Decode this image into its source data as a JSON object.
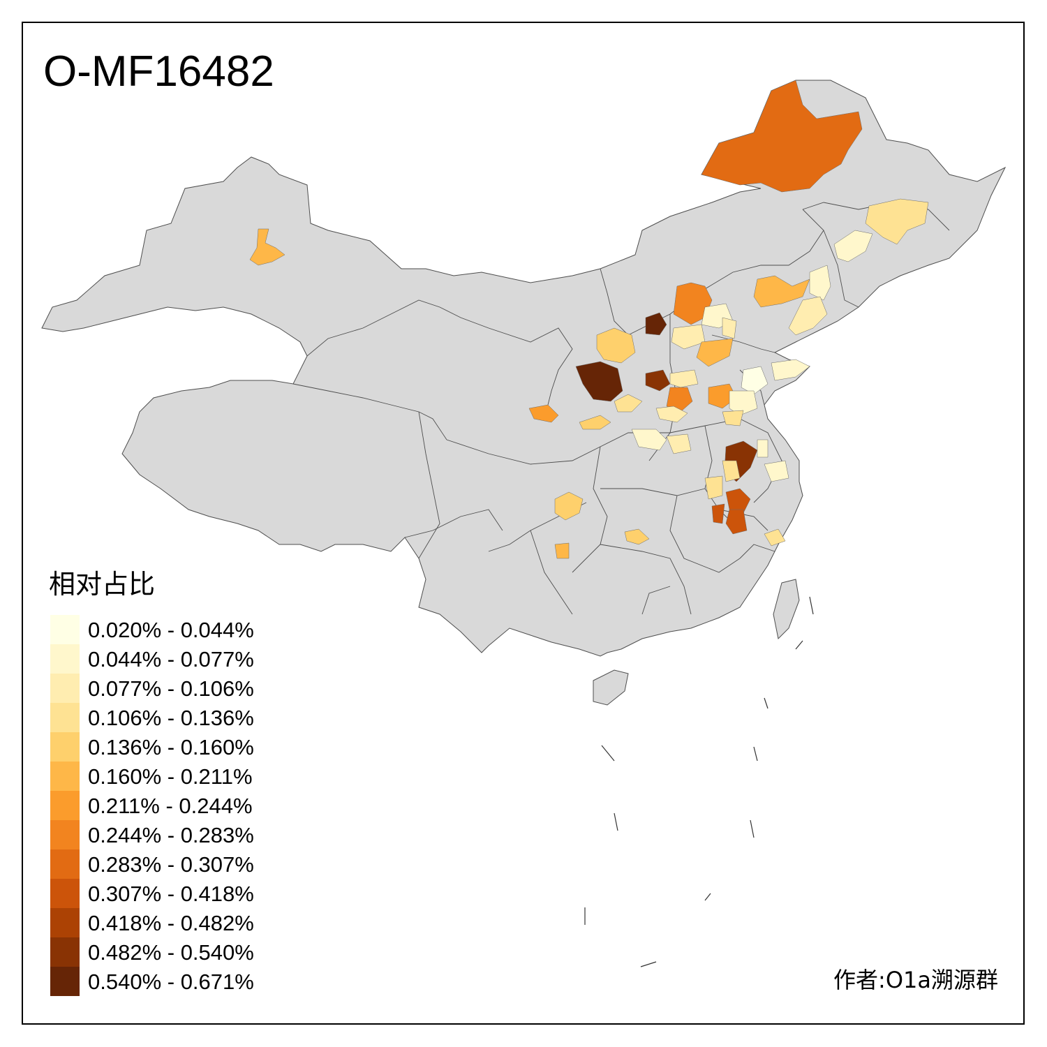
{
  "title": "O-MF16482",
  "legend": {
    "title": "相对占比",
    "items": [
      {
        "label": "0.020% - 0.044%",
        "color": "#FFFFE5"
      },
      {
        "label": "0.044% - 0.077%",
        "color": "#FFF7CC"
      },
      {
        "label": "0.077% - 0.106%",
        "color": "#FFEDB0"
      },
      {
        "label": "0.106% - 0.136%",
        "color": "#FEE293"
      },
      {
        "label": "0.136% - 0.160%",
        "color": "#FED06C"
      },
      {
        "label": "0.160% - 0.211%",
        "color": "#FEB748"
      },
      {
        "label": "0.211% - 0.244%",
        "color": "#FB9C2C"
      },
      {
        "label": "0.244% - 0.283%",
        "color": "#F2841F"
      },
      {
        "label": "0.283% - 0.307%",
        "color": "#E26B13"
      },
      {
        "label": "0.307% - 0.418%",
        "color": "#CC540A"
      },
      {
        "label": "0.418% - 0.482%",
        "color": "#AC4204"
      },
      {
        "label": "0.482% - 0.540%",
        "color": "#893304"
      },
      {
        "label": "0.540% - 0.671%",
        "color": "#662506"
      }
    ]
  },
  "credit": "作者:O1a溯源群",
  "colors": {
    "base_region": "#D9D9D9",
    "border": "#4D4D4D"
  }
}
